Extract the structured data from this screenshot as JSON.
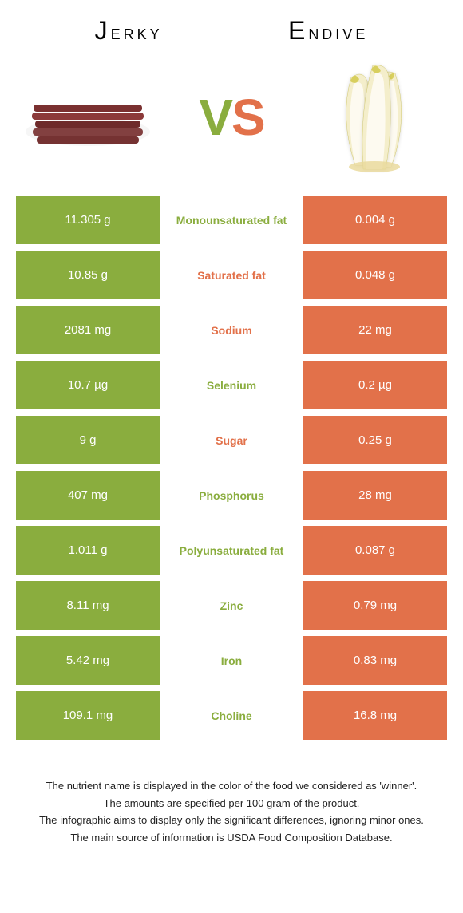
{
  "header": {
    "left_title": "Jerky",
    "right_title": "Endive"
  },
  "vs": {
    "v_color": "#8aad3e",
    "s_color": "#e2714a"
  },
  "colors": {
    "left_bg": "#8aad3e",
    "right_bg": "#e2714a",
    "winner_left_text": "#8aad3e",
    "winner_right_text": "#e2714a"
  },
  "rows": [
    {
      "left": "11.305 g",
      "label": "Monounsaturated fat",
      "right": "0.004 g",
      "winner": "left"
    },
    {
      "left": "10.85 g",
      "label": "Saturated fat",
      "right": "0.048 g",
      "winner": "right"
    },
    {
      "left": "2081 mg",
      "label": "Sodium",
      "right": "22 mg",
      "winner": "right"
    },
    {
      "left": "10.7 µg",
      "label": "Selenium",
      "right": "0.2 µg",
      "winner": "left"
    },
    {
      "left": "9 g",
      "label": "Sugar",
      "right": "0.25 g",
      "winner": "right"
    },
    {
      "left": "407 mg",
      "label": "Phosphorus",
      "right": "28 mg",
      "winner": "left"
    },
    {
      "left": "1.011 g",
      "label": "Polyunsaturated fat",
      "right": "0.087 g",
      "winner": "left"
    },
    {
      "left": "8.11 mg",
      "label": "Zinc",
      "right": "0.79 mg",
      "winner": "left"
    },
    {
      "left": "5.42 mg",
      "label": "Iron",
      "right": "0.83 mg",
      "winner": "left"
    },
    {
      "left": "109.1 mg",
      "label": "Choline",
      "right": "16.8 mg",
      "winner": "left"
    }
  ],
  "footnotes": [
    "The nutrient name is displayed in the color of the food we considered as 'winner'.",
    "The amounts are specified per 100 gram of the product.",
    "The infographic aims to display only the significant differences, ignoring minor ones.",
    "The main source of information is USDA Food Composition Database."
  ],
  "images": {
    "jerky": {
      "plate_color": "#f0f0f0",
      "meat_colors": [
        "#7a3030",
        "#8c3a3a",
        "#6e2a2a",
        "#824040",
        "#753232"
      ]
    },
    "endive": {
      "outer": "#f4eecb",
      "inner": "#fdfaf0",
      "tip": "#d8cf5e",
      "base": "#e8d898"
    }
  }
}
